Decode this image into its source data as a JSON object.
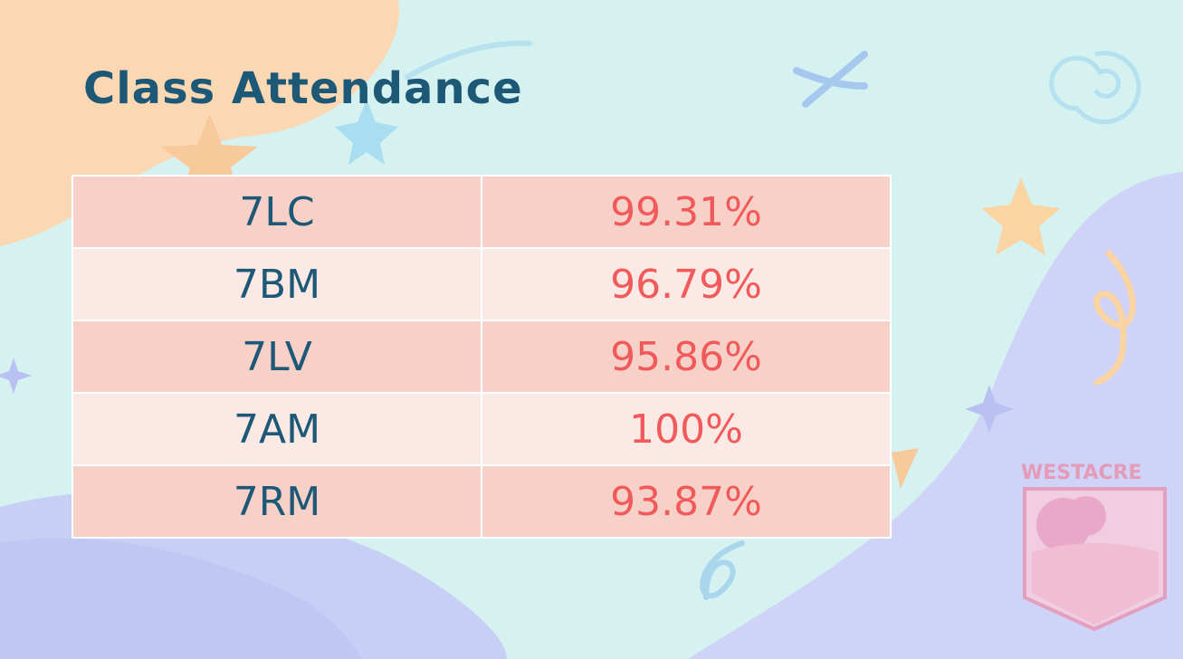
{
  "title": "Class Attendance",
  "table": {
    "rows": [
      [
        "7LC",
        "99.31%"
      ],
      [
        "7BM",
        "96.79%"
      ],
      [
        "7LV",
        "95.86%"
      ],
      [
        "7AM",
        "100%"
      ],
      [
        "7RM",
        "93.87%"
      ]
    ]
  },
  "logo": {
    "text": "WESTACRE"
  }
}
